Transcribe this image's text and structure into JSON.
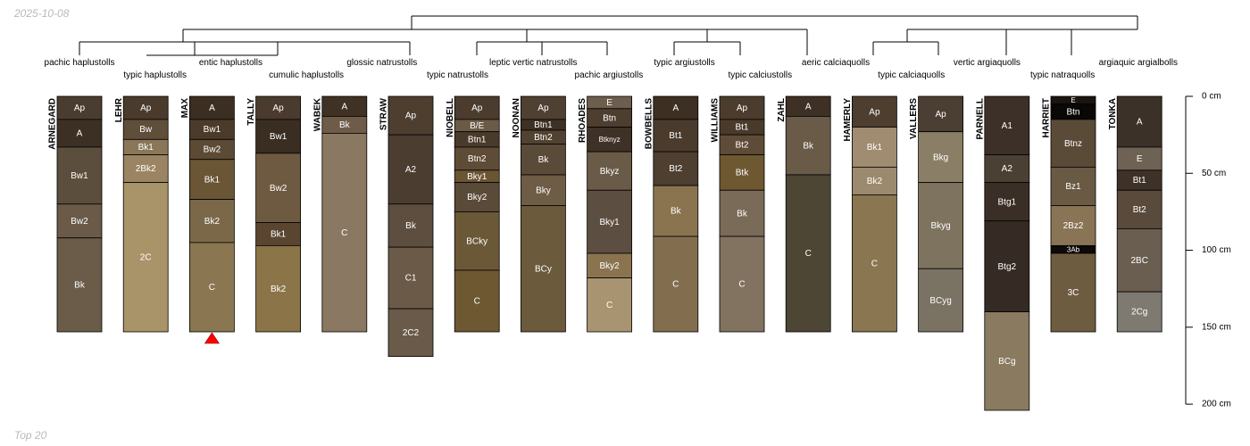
{
  "header": {
    "date": "2025-10-08"
  },
  "footer": {
    "caption": "Top 20"
  },
  "depth_axis": {
    "unit": "cm",
    "ticks": [
      {
        "depth": 0,
        "label": "0 cm"
      },
      {
        "depth": 50,
        "label": "50 cm"
      },
      {
        "depth": 100,
        "label": "100 cm"
      },
      {
        "depth": 150,
        "label": "150 cm"
      },
      {
        "depth": 200,
        "label": "200 cm"
      }
    ]
  },
  "taxa": [
    {
      "label": "pachic haplustolls",
      "row": 0
    },
    {
      "label": "typic haplustolls",
      "row": 1
    },
    {
      "label": "entic haplustolls",
      "row": 0
    },
    {
      "label": "cumulic haplustolls",
      "row": 1
    },
    {
      "label": "glossic natrustolls",
      "row": 0
    },
    {
      "label": "typic natrustolls",
      "row": 1
    },
    {
      "label": "leptic vertic natrustolls",
      "row": 0
    },
    {
      "label": "pachic argiustolls",
      "row": 1
    },
    {
      "label": "typic argiustolls",
      "row": 0
    },
    {
      "label": "typic calciustolls",
      "row": 1
    },
    {
      "label": "aeric calciaquolls",
      "row": 0
    },
    {
      "label": "typic calciaquolls",
      "row": 1
    },
    {
      "label": "vertic argiaquolls",
      "row": 0
    },
    {
      "label": "typic natraquolls",
      "row": 1
    },
    {
      "label": "argiaquic argialbolls",
      "row": 0
    }
  ],
  "profiles": [
    {
      "name": "ARNEGARD",
      "horizons": [
        {
          "name": "Ap",
          "top": 0,
          "bottom": 15,
          "color": "#4a3d30"
        },
        {
          "name": "A",
          "top": 15,
          "bottom": 33,
          "color": "#3c3025"
        },
        {
          "name": "Bw1",
          "top": 33,
          "bottom": 70,
          "color": "#5c4e3c"
        },
        {
          "name": "Bw2",
          "top": 70,
          "bottom": 92,
          "color": "#6b5a48"
        },
        {
          "name": "Bk",
          "top": 92,
          "bottom": 153,
          "color": "#6a5c48"
        }
      ]
    },
    {
      "name": "LEHR",
      "horizons": [
        {
          "name": "Ap",
          "top": 0,
          "bottom": 15,
          "color": "#4a3b2c"
        },
        {
          "name": "Bw",
          "top": 15,
          "bottom": 28,
          "color": "#5f4e3a"
        },
        {
          "name": "Bk1",
          "top": 28,
          "bottom": 38,
          "color": "#8a7658"
        },
        {
          "name": "2Bk2",
          "top": 38,
          "bottom": 56,
          "color": "#9b8462"
        },
        {
          "name": "2C",
          "top": 56,
          "bottom": 153,
          "color": "#a89468"
        }
      ]
    },
    {
      "name": "MAX",
      "marker": true,
      "horizons": [
        {
          "name": "A",
          "top": 0,
          "bottom": 15,
          "color": "#3c2f22"
        },
        {
          "name": "Bw1",
          "top": 15,
          "bottom": 28,
          "color": "#4c3a2a"
        },
        {
          "name": "Bw2",
          "top": 28,
          "bottom": 41,
          "color": "#5c4a35"
        },
        {
          "name": "Bk1",
          "top": 41,
          "bottom": 67,
          "color": "#6a5535"
        },
        {
          "name": "Bk2",
          "top": 67,
          "bottom": 95,
          "color": "#7a6848"
        },
        {
          "name": "C",
          "top": 95,
          "bottom": 153,
          "color": "#8a7650"
        }
      ]
    },
    {
      "name": "TALLY",
      "horizons": [
        {
          "name": "Ap",
          "top": 0,
          "bottom": 15,
          "color": "#4a3b2e"
        },
        {
          "name": "Bw1",
          "top": 15,
          "bottom": 37,
          "color": "#3a2d22"
        },
        {
          "name": "Bw2",
          "top": 37,
          "bottom": 82,
          "color": "#6e5a40"
        },
        {
          "name": "Bk1",
          "top": 82,
          "bottom": 97,
          "color": "#5a4630"
        },
        {
          "name": "Bk2",
          "top": 97,
          "bottom": 153,
          "color": "#8a7448"
        }
      ]
    },
    {
      "name": "WABEK",
      "horizons": [
        {
          "name": "A",
          "top": 0,
          "bottom": 13,
          "color": "#3f3124"
        },
        {
          "name": "Bk",
          "top": 13,
          "bottom": 24,
          "color": "#6e5c48"
        },
        {
          "name": "C",
          "top": 24,
          "bottom": 153,
          "color": "#8a7862"
        }
      ]
    },
    {
      "name": "STRAW",
      "horizons": [
        {
          "name": "Ap",
          "top": 0,
          "bottom": 25,
          "color": "#4d3e30"
        },
        {
          "name": "A2",
          "top": 25,
          "bottom": 70,
          "color": "#4b3d30"
        },
        {
          "name": "Bk",
          "top": 70,
          "bottom": 98,
          "color": "#5d4e40"
        },
        {
          "name": "C1",
          "top": 98,
          "bottom": 138,
          "color": "#6b5a48"
        },
        {
          "name": "2C2",
          "top": 138,
          "bottom": 169,
          "color": "#6a5a4a"
        }
      ]
    },
    {
      "name": "NIOBELL",
      "horizons": [
        {
          "name": "Ap",
          "top": 0,
          "bottom": 15,
          "color": "#4b3c2e"
        },
        {
          "name": "B/E",
          "top": 15,
          "bottom": 23,
          "color": "#6b5a46"
        },
        {
          "name": "Btn1",
          "top": 23,
          "bottom": 33,
          "color": "#4a3a2b"
        },
        {
          "name": "Btn2",
          "top": 33,
          "bottom": 48,
          "color": "#5f4c36"
        },
        {
          "name": "Bky1",
          "top": 48,
          "bottom": 56,
          "color": "#6b5532"
        },
        {
          "name": "Bky2",
          "top": 56,
          "bottom": 75,
          "color": "#5a4a38"
        },
        {
          "name": "BCky",
          "top": 75,
          "bottom": 113,
          "color": "#6b5837"
        },
        {
          "name": "C",
          "top": 113,
          "bottom": 153,
          "color": "#6e5832"
        }
      ]
    },
    {
      "name": "NOONAN",
      "horizons": [
        {
          "name": "Ap",
          "top": 0,
          "bottom": 15,
          "color": "#4f4032"
        },
        {
          "name": "Btn1",
          "top": 15,
          "bottom": 22,
          "color": "#3d3024"
        },
        {
          "name": "Btn2",
          "top": 22,
          "bottom": 31,
          "color": "#524231"
        },
        {
          "name": "Bk",
          "top": 31,
          "bottom": 51,
          "color": "#5a4a38"
        },
        {
          "name": "Bky",
          "top": 51,
          "bottom": 71,
          "color": "#6e5c46"
        },
        {
          "name": "BCy",
          "top": 71,
          "bottom": 153,
          "color": "#6b5a3c"
        }
      ]
    },
    {
      "name": "RHOADES",
      "horizons": [
        {
          "name": "E",
          "top": 0,
          "bottom": 8,
          "color": "#6e5e4e"
        },
        {
          "name": "Btn",
          "top": 8,
          "bottom": 20,
          "color": "#4e3e30"
        },
        {
          "name": "Btknyz",
          "top": 20,
          "bottom": 36,
          "color": "#3e3126"
        },
        {
          "name": "Bkyz",
          "top": 36,
          "bottom": 61,
          "color": "#6a5a48"
        },
        {
          "name": "Bky1",
          "top": 61,
          "bottom": 102,
          "color": "#5c4e40"
        },
        {
          "name": "Bky2",
          "top": 102,
          "bottom": 118,
          "color": "#8a7450"
        },
        {
          "name": "C",
          "top": 118,
          "bottom": 153,
          "color": "#a89470"
        }
      ]
    },
    {
      "name": "BOWBELLS",
      "horizons": [
        {
          "name": "A",
          "top": 0,
          "bottom": 15,
          "color": "#3d2f22"
        },
        {
          "name": "Bt1",
          "top": 15,
          "bottom": 36,
          "color": "#4a3b2d"
        },
        {
          "name": "Bt2",
          "top": 36,
          "bottom": 58,
          "color": "#4e3f30"
        },
        {
          "name": "Bk",
          "top": 58,
          "bottom": 91,
          "color": "#8a7450"
        },
        {
          "name": "C",
          "top": 91,
          "bottom": 153,
          "color": "#826e4e"
        }
      ]
    },
    {
      "name": "WILLIAMS",
      "horizons": [
        {
          "name": "Ap",
          "top": 0,
          "bottom": 15,
          "color": "#4b3c2d"
        },
        {
          "name": "Bt1",
          "top": 15,
          "bottom": 25,
          "color": "#4a3a2a"
        },
        {
          "name": "Bt2",
          "top": 25,
          "bottom": 38,
          "color": "#5e4c38"
        },
        {
          "name": "Btk",
          "top": 38,
          "bottom": 61,
          "color": "#6e5832"
        },
        {
          "name": "Bk",
          "top": 61,
          "bottom": 91,
          "color": "#7a6a58"
        },
        {
          "name": "C",
          "top": 91,
          "bottom": 153,
          "color": "#827260"
        }
      ]
    },
    {
      "name": "ZAHL",
      "horizons": [
        {
          "name": "A",
          "top": 0,
          "bottom": 13,
          "color": "#3e3024"
        },
        {
          "name": "Bk",
          "top": 13,
          "bottom": 51,
          "color": "#6a5a48"
        },
        {
          "name": "C",
          "top": 51,
          "bottom": 153,
          "color": "#4e4634"
        }
      ]
    },
    {
      "name": "HAMERLY",
      "horizons": [
        {
          "name": "Ap",
          "top": 0,
          "bottom": 20,
          "color": "#4d3e30"
        },
        {
          "name": "Bk1",
          "top": 20,
          "bottom": 46,
          "color": "#a08c70"
        },
        {
          "name": "Bk2",
          "top": 46,
          "bottom": 64,
          "color": "#9c8a6e"
        },
        {
          "name": "C",
          "top": 64,
          "bottom": 153,
          "color": "#8a7650"
        }
      ]
    },
    {
      "name": "VALLERS",
      "horizons": [
        {
          "name": "Ap",
          "top": 0,
          "bottom": 23,
          "color": "#4b3e32"
        },
        {
          "name": "Bkg",
          "top": 23,
          "bottom": 56,
          "color": "#8a7e66"
        },
        {
          "name": "Bkyg",
          "top": 56,
          "bottom": 112,
          "color": "#7e735e"
        },
        {
          "name": "BCyg",
          "top": 112,
          "bottom": 153,
          "color": "#7a7262"
        }
      ]
    },
    {
      "name": "PARNELL",
      "horizons": [
        {
          "name": "A1",
          "top": 0,
          "bottom": 38,
          "color": "#3d3028"
        },
        {
          "name": "A2",
          "top": 38,
          "bottom": 56,
          "color": "#4b4034"
        },
        {
          "name": "Btg1",
          "top": 56,
          "bottom": 81,
          "color": "#3a2e26"
        },
        {
          "name": "Btg2",
          "top": 81,
          "bottom": 140,
          "color": "#352b24"
        },
        {
          "name": "BCg",
          "top": 140,
          "bottom": 204,
          "color": "#8a7a60"
        }
      ]
    },
    {
      "name": "HARRIET",
      "horizons": [
        {
          "name": "E",
          "top": 0,
          "bottom": 5,
          "color": "#1a1511"
        },
        {
          "name": "Btn",
          "top": 5,
          "bottom": 15,
          "color": "#0a0806"
        },
        {
          "name": "Btnz",
          "top": 15,
          "bottom": 46,
          "color": "#5a4a38"
        },
        {
          "name": "Bz1",
          "top": 46,
          "bottom": 71,
          "color": "#6a5a44"
        },
        {
          "name": "2Bz2",
          "top": 71,
          "bottom": 97,
          "color": "#8a7456"
        },
        {
          "name": "3Ab",
          "top": 97,
          "bottom": 102,
          "color": "#0d0a08"
        },
        {
          "name": "3C",
          "top": 102,
          "bottom": 153,
          "color": "#6e5c40"
        }
      ]
    },
    {
      "name": "TONKA",
      "horizons": [
        {
          "name": "A",
          "top": 0,
          "bottom": 33,
          "color": "#3c3128"
        },
        {
          "name": "E",
          "top": 33,
          "bottom": 48,
          "color": "#6e6254"
        },
        {
          "name": "Bt1",
          "top": 48,
          "bottom": 61,
          "color": "#3e3228"
        },
        {
          "name": "Bt2",
          "top": 61,
          "bottom": 86,
          "color": "#5a4a3c"
        },
        {
          "name": "2BC",
          "top": 86,
          "bottom": 127,
          "color": "#6a5e50"
        },
        {
          "name": "2Cg",
          "top": 127,
          "bottom": 153,
          "color": "#7e7a72"
        }
      ]
    }
  ],
  "style": {
    "line": "#000000",
    "label_light": "#ffffff",
    "label_dark": "#000000",
    "marker": "#ff0000"
  }
}
